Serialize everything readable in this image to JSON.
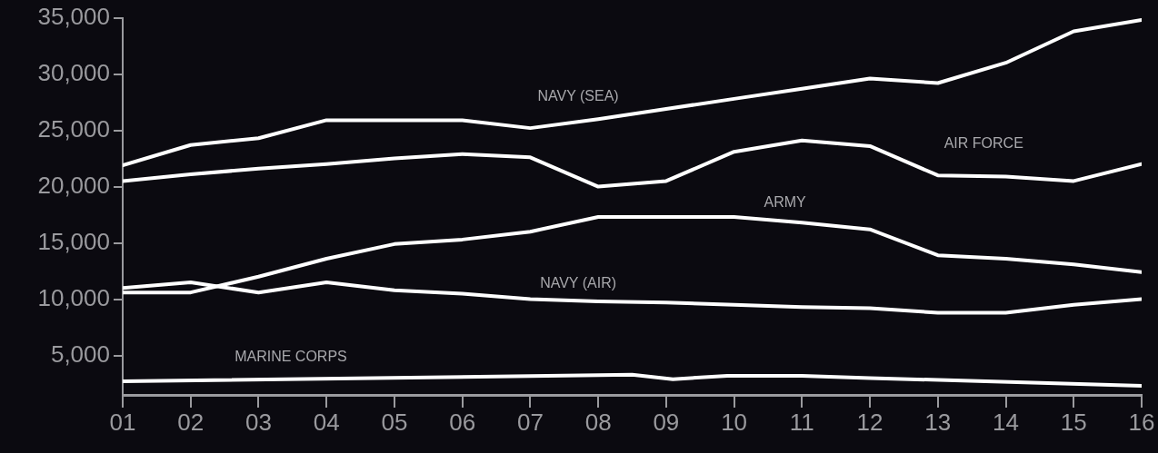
{
  "chart_data": {
    "type": "line",
    "x": [
      1,
      2,
      3,
      4,
      5,
      6,
      7,
      8,
      9,
      10,
      11,
      12,
      13,
      14,
      15,
      16
    ],
    "xlim": [
      1,
      16
    ],
    "xticks": [
      {
        "value": 1,
        "label": "01"
      },
      {
        "value": 2,
        "label": "02"
      },
      {
        "value": 3,
        "label": "03"
      },
      {
        "value": 4,
        "label": "04"
      },
      {
        "value": 5,
        "label": "05"
      },
      {
        "value": 6,
        "label": "06"
      },
      {
        "value": 7,
        "label": "07"
      },
      {
        "value": 8,
        "label": "08"
      },
      {
        "value": 9,
        "label": "09"
      },
      {
        "value": 10,
        "label": "10"
      },
      {
        "value": 11,
        "label": "11"
      },
      {
        "value": 12,
        "label": "12"
      },
      {
        "value": 13,
        "label": "13"
      },
      {
        "value": 14,
        "label": "14"
      },
      {
        "value": 15,
        "label": "15"
      },
      {
        "value": 16,
        "label": "16"
      }
    ],
    "ylim": [
      1500,
      35000
    ],
    "yticks": [
      {
        "value": 5000,
        "label": "5,000"
      },
      {
        "value": 10000,
        "label": "10,000"
      },
      {
        "value": 15000,
        "label": "15,000"
      },
      {
        "value": 20000,
        "label": "20,000"
      },
      {
        "value": 25000,
        "label": "25,000"
      },
      {
        "value": 30000,
        "label": "30,000"
      },
      {
        "value": 35000,
        "label": "35,000"
      }
    ],
    "grid": false,
    "legend": false,
    "marker": "none",
    "line_style": "solid",
    "series": [
      {
        "name": "NAVY (SEA)",
        "color": "#ffffff",
        "values": [
          21900,
          23700,
          24300,
          25900,
          25900,
          25900,
          25200,
          26000,
          26900,
          27800,
          28700,
          29600,
          29200,
          31000,
          33800,
          34800
        ]
      },
      {
        "name": "AIR FORCE",
        "color": "#ffffff",
        "values": [
          20500,
          21100,
          21600,
          22000,
          22500,
          22900,
          22600,
          20000,
          20500,
          23100,
          24100,
          23600,
          21000,
          20900,
          20500,
          22000
        ]
      },
      {
        "name": "ARMY",
        "color": "#ffffff",
        "values": [
          10600,
          10600,
          12000,
          13600,
          14900,
          15300,
          16000,
          17300,
          17300,
          17300,
          16800,
          16200,
          13900,
          13600,
          13100,
          12400
        ]
      },
      {
        "name": "NAVY (AIR)",
        "color": "#ffffff",
        "values": [
          11000,
          11500,
          10600,
          11500,
          10800,
          10500,
          10000,
          9800,
          9700,
          9500,
          9300,
          9200,
          8800,
          8800,
          9500,
          10000
        ]
      },
      {
        "name": "MARINE CORPS",
        "color": "#ffffff",
        "x": [
          1,
          8.5,
          9.1,
          9.9,
          11,
          12,
          16
        ],
        "values": [
          2700,
          3300,
          2900,
          3200,
          3200,
          3000,
          2300
        ]
      }
    ]
  }
}
